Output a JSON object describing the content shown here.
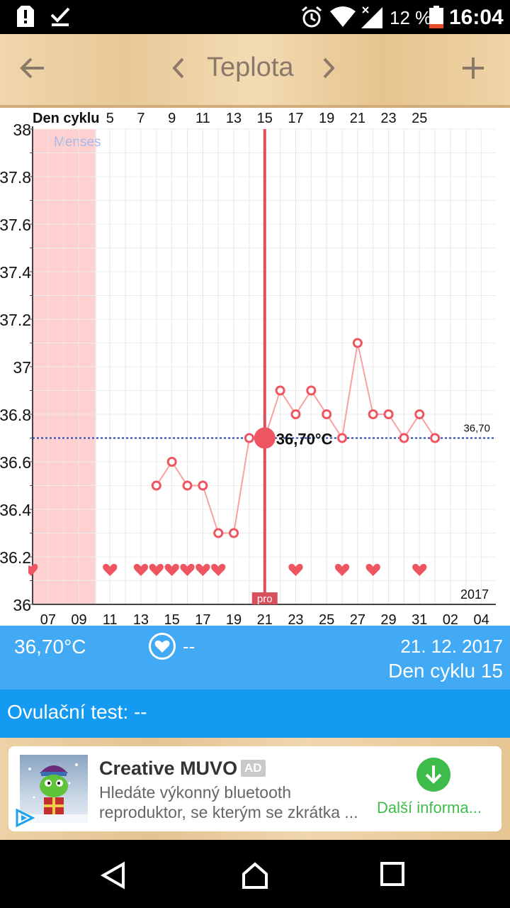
{
  "status_bar": {
    "battery_text": "12 %",
    "time": "16:04",
    "icons": [
      "alert-icon",
      "check-icon",
      "alarm-icon",
      "wifi-icon",
      "signal-icon",
      "battery-icon"
    ]
  },
  "app_bar": {
    "title": "Teplota",
    "icons": [
      "back-arrow-icon",
      "chevron-left-icon",
      "chevron-right-icon",
      "plus-icon"
    ]
  },
  "chart_data": {
    "type": "line",
    "top_axis_title": "Den cyklu",
    "top_ticks": [
      "5",
      "7",
      "9",
      "11",
      "13",
      "15",
      "17",
      "19",
      "21",
      "23",
      "25"
    ],
    "bottom_ticks": [
      "07",
      "09",
      "11",
      "13",
      "15",
      "17",
      "19",
      "21",
      "23",
      "25",
      "27",
      "29",
      "31",
      "02",
      "04"
    ],
    "y_ticks": [
      "38",
      "37.8",
      "37.6",
      "37.4",
      "37.2",
      "37",
      "36.8",
      "36.6",
      "36.4",
      "36.2",
      "36"
    ],
    "ylim": [
      36,
      38
    ],
    "year_label": "2017",
    "menses_label": "Menses",
    "menses_cycle_days": [
      1,
      4
    ],
    "reference_value": 36.7,
    "reference_label": "36,70",
    "selected_cycle_day": 15,
    "selected_label": "36,70°C",
    "selected_marker": "pro",
    "x_cycle_days": [
      8,
      9,
      10,
      11,
      12,
      13,
      14,
      15,
      16,
      17,
      18,
      19,
      20,
      21,
      22,
      23,
      24,
      25,
      26
    ],
    "series": [
      {
        "values": [
          36.5,
          36.6,
          36.5,
          36.5,
          36.3,
          36.3,
          36.7,
          36.7,
          36.9,
          36.8,
          36.9,
          36.8,
          36.7,
          37.1,
          36.8,
          36.8,
          36.7,
          36.8,
          36.7
        ]
      }
    ],
    "heart_cycle_days": [
      5,
      7,
      8,
      9,
      10,
      11,
      12,
      17,
      20,
      22,
      25
    ],
    "colors": {
      "line": "#f7a1a1",
      "marker": "#ee5560",
      "menses": "#ffd0d0",
      "selected": "#d9505d",
      "reference": "#1f3fb0"
    }
  },
  "info_bar": {
    "temperature": "36,70°C",
    "sex": "--",
    "date": "21. 12. 2017",
    "cycle_day": "Den cyklu 15",
    "heart_icon": "heart-circle-icon"
  },
  "ovulation": {
    "label": "Ovulační test: --"
  },
  "ad": {
    "title": "Creative MUVO",
    "badge": "AD",
    "desc_line1": "Hledáte výkonný bluetooth",
    "desc_line2": "reproduktor, se kterým se zkrátka ...",
    "cta": "Další informa...",
    "icons": [
      "download-icon",
      "adchoices-icon"
    ]
  },
  "nav_bar": {
    "icons": [
      "back-triangle-icon",
      "home-icon",
      "recents-icon"
    ]
  }
}
